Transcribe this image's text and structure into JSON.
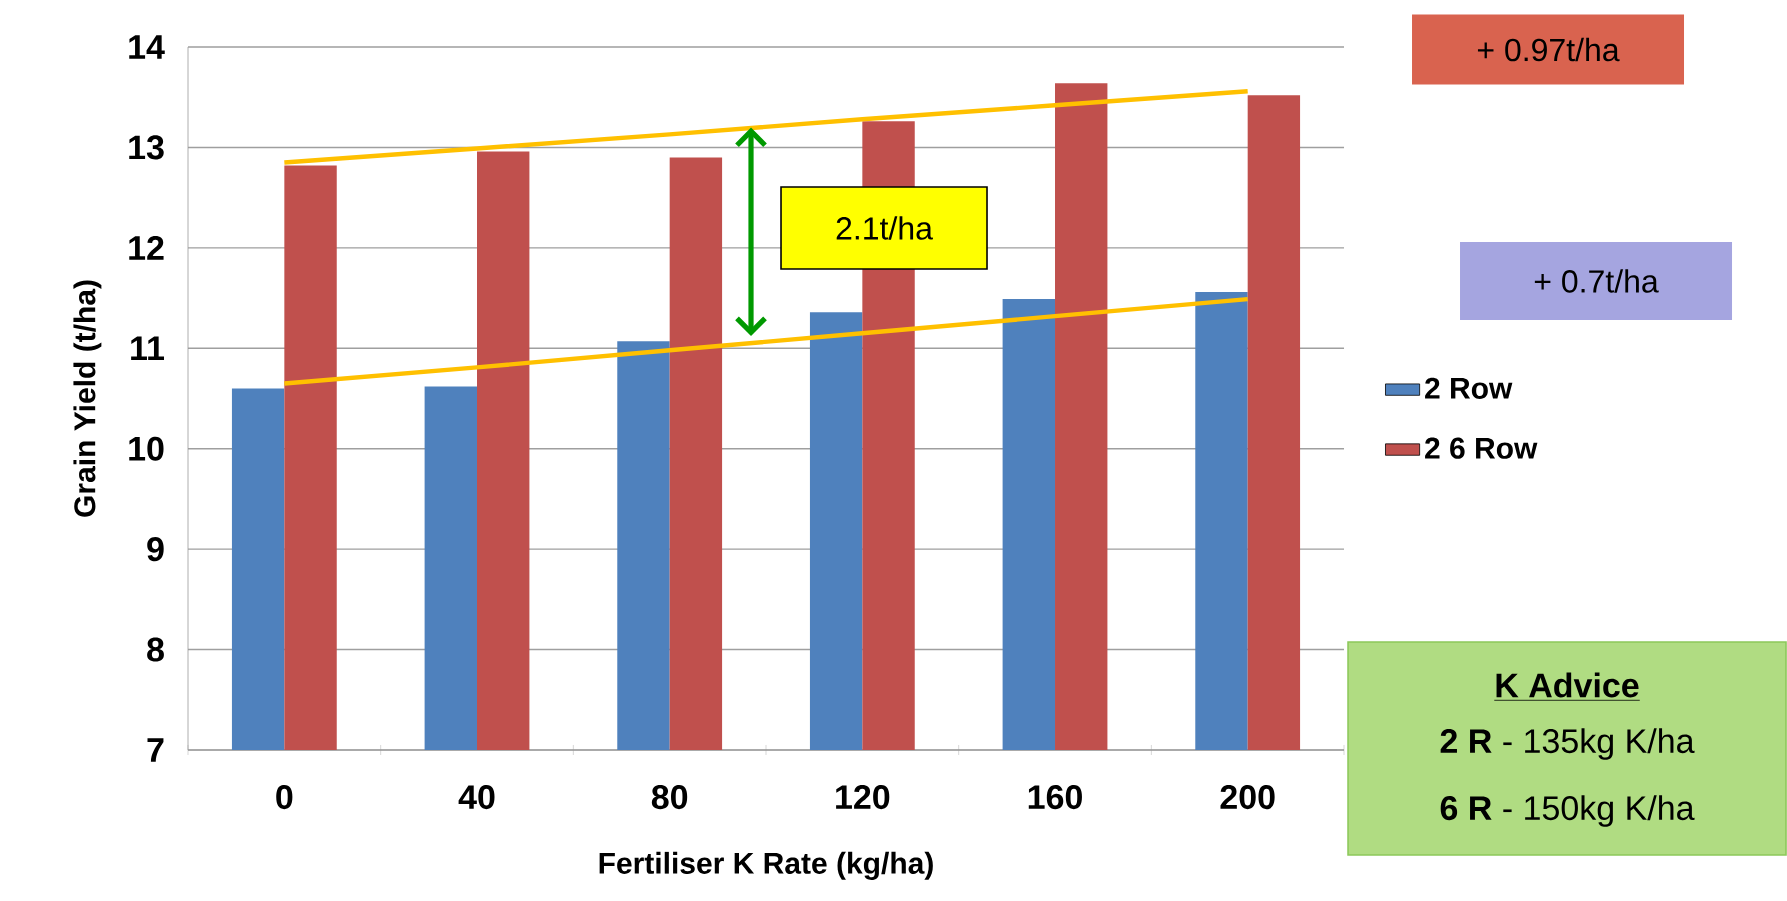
{
  "chart_data": {
    "type": "bar",
    "xlabel": "Fertiliser K Rate (kg/ha)",
    "ylabel": "Grain Yield (t/ha)",
    "categories": [
      "0",
      "40",
      "80",
      "120",
      "160",
      "200"
    ],
    "series": [
      {
        "name": "2 Row",
        "color": "#4f81bd",
        "values": [
          10.6,
          10.62,
          11.07,
          11.36,
          11.49,
          11.56
        ]
      },
      {
        "name": "2 6 Row",
        "color": "#c0504d",
        "values": [
          12.82,
          12.96,
          12.9,
          13.26,
          13.64,
          13.52
        ]
      },
      {
        "type": "line",
        "color": "#ffc000",
        "values": [
          12.85,
          12.99,
          13.13,
          13.28,
          13.42,
          13.56
        ]
      },
      {
        "type": "line",
        "color": "#ffc000",
        "values": [
          10.65,
          10.81,
          10.98,
          11.15,
          11.32,
          11.49
        ]
      }
    ],
    "ylim": [
      7,
      14
    ],
    "yticks": [
      7,
      8,
      9,
      10,
      11,
      12,
      13,
      14
    ],
    "grid": "y",
    "legend": "right",
    "annotations": [
      "+ 0.97t/ha",
      "+ 0.7t/ha",
      "2.1t/ha",
      "K Advice",
      "**2 R** - 135kg K/ha",
      "**6 R** - 150kg K/ha"
    ]
  }
}
